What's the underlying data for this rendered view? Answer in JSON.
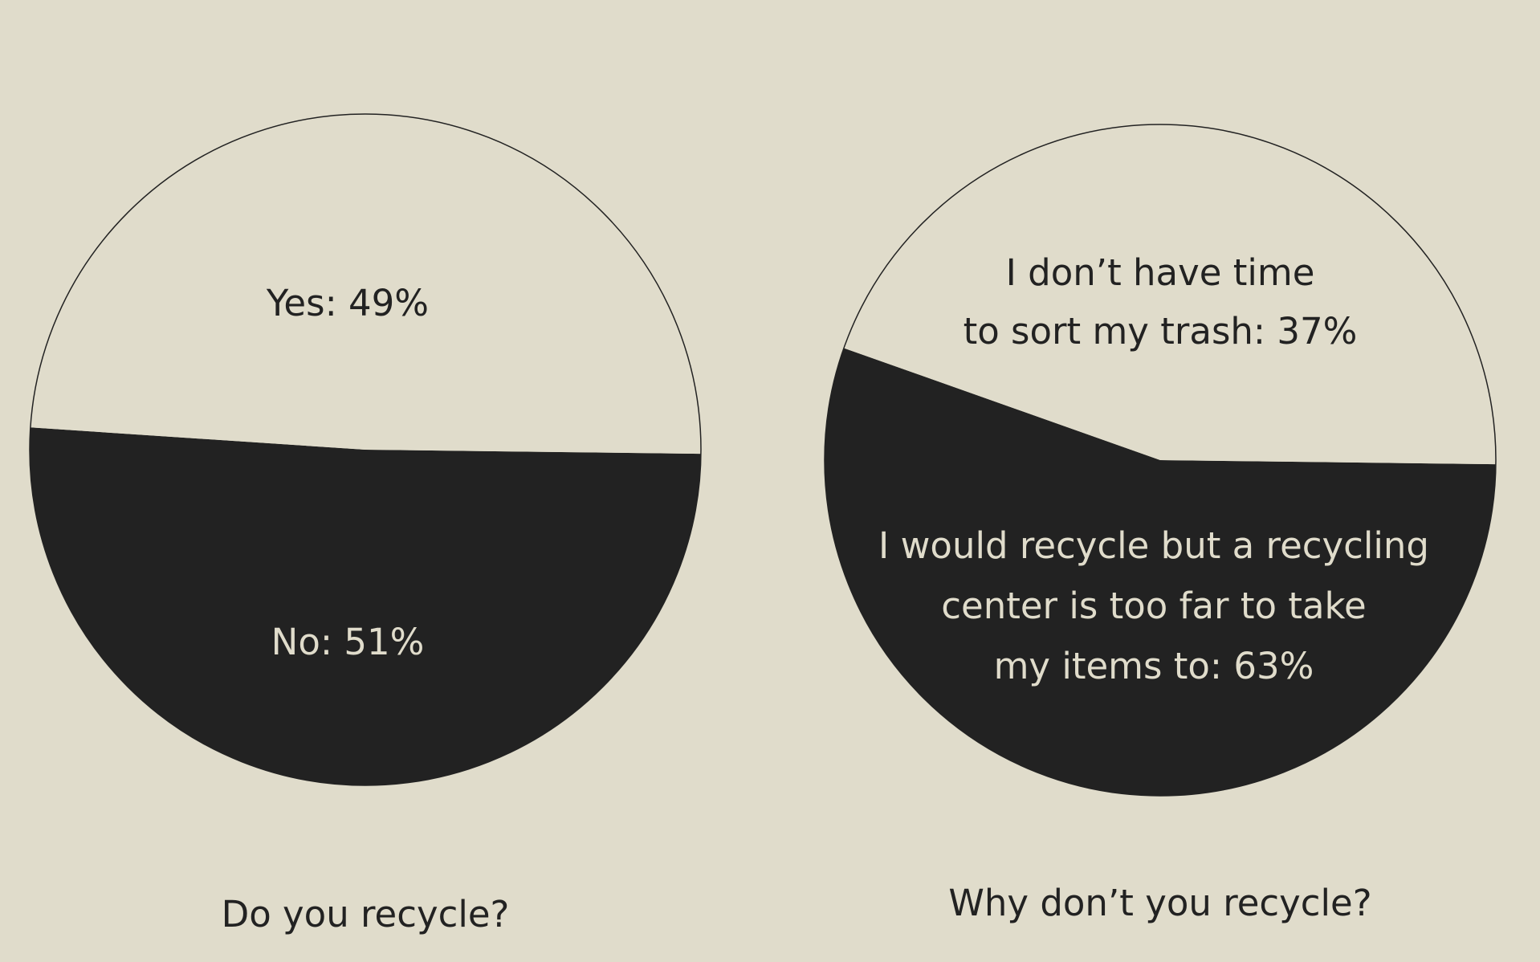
{
  "colors": {
    "background": "#e0dccb",
    "light_slice": "#e0dccb",
    "dark_slice": "#222222",
    "outline": "#222222",
    "label_on_light": "#222222",
    "label_on_dark": "#e0dccb"
  },
  "chart_data": [
    {
      "type": "pie",
      "title": "Do you recycle?",
      "slices": [
        {
          "label": "Yes: 49%",
          "lines": [
            "Yes: 49%"
          ],
          "value": 49,
          "fill": "light"
        },
        {
          "label": "No: 51%",
          "lines": [
            "No: 51%"
          ],
          "value": 51,
          "fill": "dark"
        }
      ]
    },
    {
      "type": "pie",
      "title": "Why don’t you recycle?",
      "slices": [
        {
          "label": "I don’t have time to sort my trash: 37%",
          "lines": [
            "I don’t have time",
            "to sort my trash: 37%"
          ],
          "value": 37,
          "fill": "light"
        },
        {
          "label": "I would recycle but a recycling center is too far to take my items to: 63%",
          "lines": [
            "I would recycle but a recycling",
            "center is too far to take",
            "my items to: 63%"
          ],
          "value": 63,
          "fill": "dark"
        }
      ]
    }
  ]
}
